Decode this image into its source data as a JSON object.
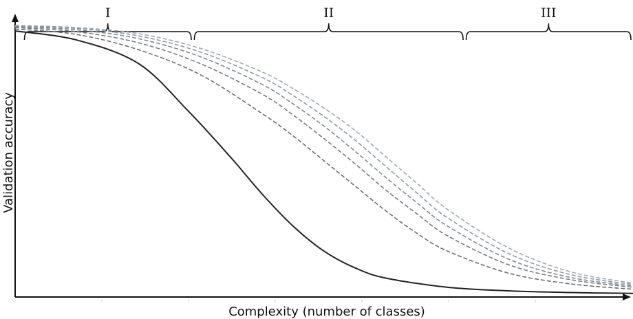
{
  "chart_data": {
    "type": "line",
    "title": "",
    "xlabel": "Complexity (number of classes)",
    "ylabel": "Validation accuracy",
    "xlim": [
      0,
      100
    ],
    "ylim": [
      0,
      1
    ],
    "grid": false,
    "regions": [
      {
        "label": "I",
        "x_start": 1.5,
        "x_end": 28.5
      },
      {
        "label": "II",
        "x_start": 29.0,
        "x_end": 72.5
      },
      {
        "label": "III",
        "x_start": 73.0,
        "x_end": 100.0
      }
    ],
    "series": [
      {
        "style": "solid",
        "color": "#222222",
        "x": [
          0,
          10,
          20,
          28,
          35,
          40,
          45,
          50,
          55,
          60,
          70,
          80,
          90,
          100
        ],
        "y": [
          0.958,
          0.925,
          0.84,
          0.67,
          0.5,
          0.37,
          0.255,
          0.165,
          0.105,
          0.068,
          0.035,
          0.022,
          0.016,
          0.013
        ]
      },
      {
        "style": "dashed",
        "color": "#6a6f73",
        "x": [
          0,
          10,
          20,
          30,
          40,
          45,
          50,
          55,
          60,
          65,
          70,
          80,
          90,
          100
        ],
        "y": [
          0.965,
          0.945,
          0.89,
          0.8,
          0.66,
          0.58,
          0.49,
          0.4,
          0.31,
          0.23,
          0.165,
          0.085,
          0.047,
          0.028
        ]
      },
      {
        "style": "dashed",
        "color": "#767c82",
        "x": [
          0,
          10,
          20,
          30,
          40,
          45,
          50,
          55,
          60,
          65,
          70,
          80,
          90,
          100
        ],
        "y": [
          0.97,
          0.955,
          0.915,
          0.84,
          0.73,
          0.655,
          0.57,
          0.48,
          0.385,
          0.3,
          0.22,
          0.115,
          0.062,
          0.035
        ]
      },
      {
        "style": "dashed",
        "color": "#838a91",
        "x": [
          0,
          10,
          20,
          30,
          40,
          45,
          50,
          55,
          60,
          65,
          70,
          80,
          90,
          100
        ],
        "y": [
          0.973,
          0.962,
          0.93,
          0.865,
          0.765,
          0.695,
          0.615,
          0.525,
          0.43,
          0.34,
          0.255,
          0.135,
          0.07,
          0.04
        ]
      },
      {
        "style": "dashed",
        "color": "#909aa3",
        "x": [
          0,
          10,
          20,
          30,
          40,
          45,
          50,
          55,
          60,
          65,
          70,
          80,
          90,
          100
        ],
        "y": [
          0.976,
          0.967,
          0.94,
          0.882,
          0.79,
          0.725,
          0.65,
          0.565,
          0.47,
          0.375,
          0.285,
          0.155,
          0.08,
          0.045
        ]
      },
      {
        "style": "dashed",
        "color": "#9eabb6",
        "x": [
          0,
          10,
          20,
          30,
          40,
          45,
          50,
          55,
          60,
          65,
          70,
          80,
          90,
          100
        ],
        "y": [
          0.978,
          0.97,
          0.948,
          0.895,
          0.81,
          0.75,
          0.68,
          0.6,
          0.505,
          0.41,
          0.315,
          0.175,
          0.09,
          0.05
        ]
      }
    ]
  }
}
